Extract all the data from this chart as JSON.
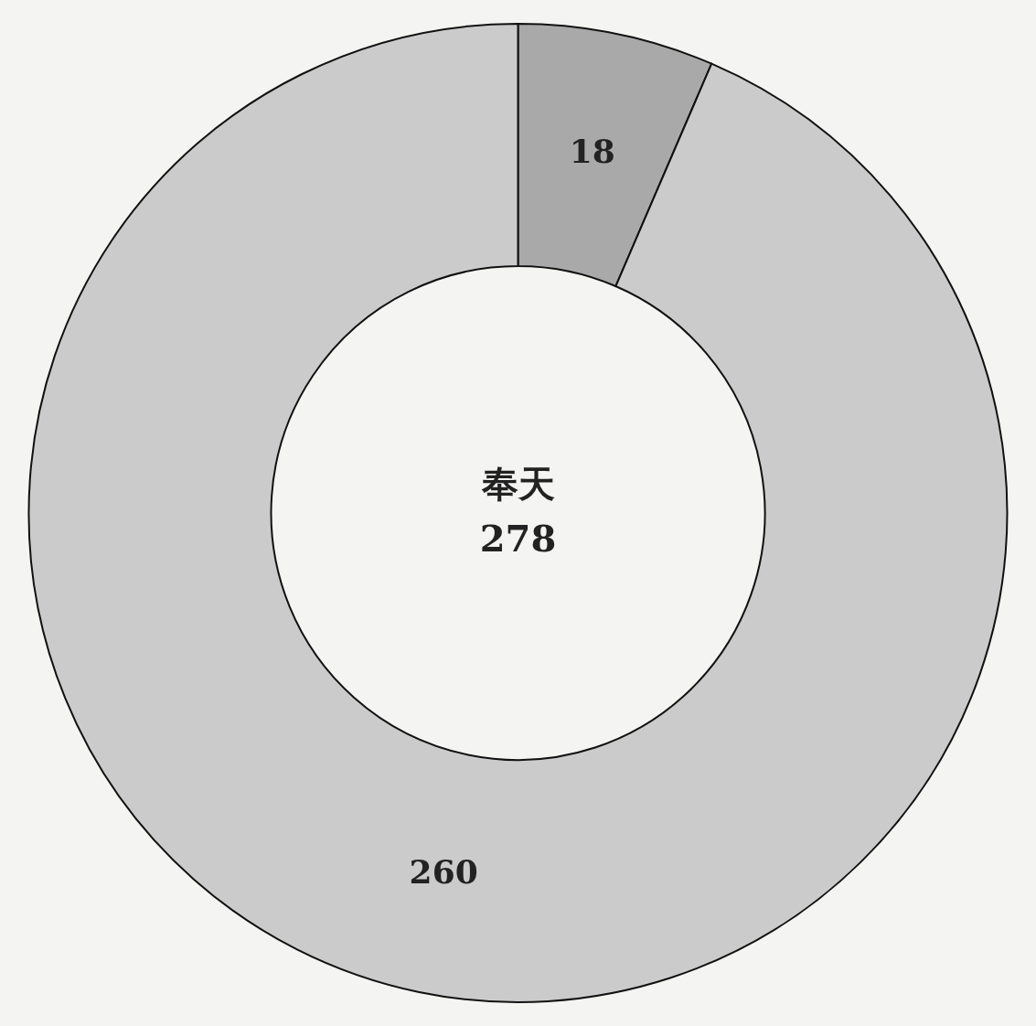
{
  "chart_data": {
    "type": "donut",
    "categories": [
      null,
      null
    ],
    "values": [
      18,
      260
    ],
    "colors": [
      "#a9a9a9",
      "#cbcbcb"
    ],
    "data_labels": true,
    "annotations": [
      "奉天",
      "278"
    ]
  }
}
